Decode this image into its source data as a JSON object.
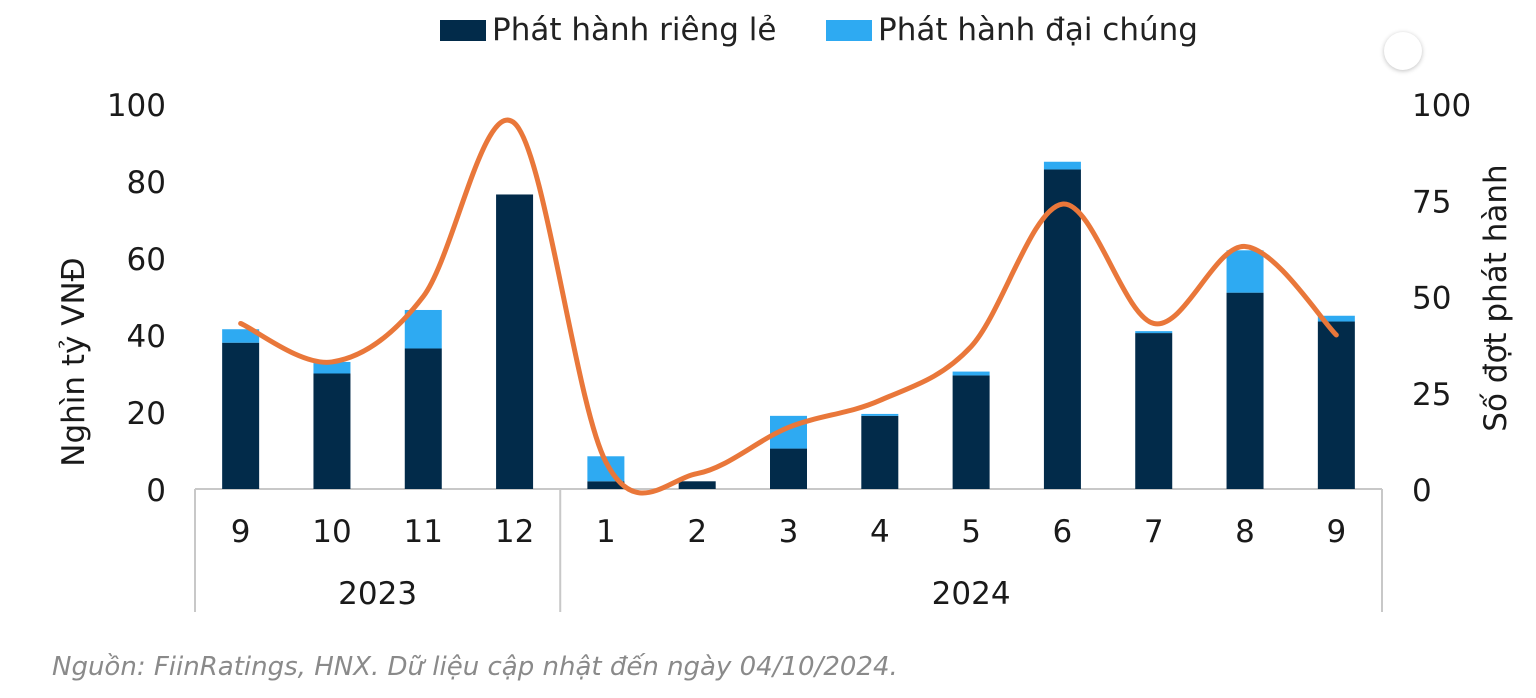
{
  "chart_data": {
    "type": "bar",
    "stacked": true,
    "categories": [
      "9",
      "10",
      "11",
      "12",
      "1",
      "2",
      "3",
      "4",
      "5",
      "6",
      "7",
      "8",
      "9"
    ],
    "groups": [
      {
        "label": "2023",
        "count": 4
      },
      {
        "label": "2024",
        "count": 9
      }
    ],
    "series": [
      {
        "name": "Phát hành riêng lẻ",
        "color": "#022b4a",
        "axis": "left",
        "values": [
          38,
          30,
          36.5,
          76.5,
          2,
          2,
          10.5,
          19,
          29.5,
          83,
          40.5,
          51,
          43.5
        ]
      },
      {
        "name": "Phát hành đại chúng",
        "color": "#2eaaf2",
        "axis": "left",
        "values": [
          3.5,
          3,
          10,
          0,
          6.5,
          0,
          8.5,
          0.5,
          1,
          2,
          0.5,
          11,
          1.5
        ]
      },
      {
        "name": "",
        "type": "line",
        "color": "#e9773a",
        "axis": "right",
        "smooth": true,
        "values": [
          43,
          33,
          50,
          95,
          7,
          4,
          16,
          23,
          37,
          74,
          43,
          63,
          40
        ]
      }
    ],
    "ylabel": "Nghìn tỷ VNĐ",
    "ylim": [
      0,
      100
    ],
    "yticks": [
      "0",
      "20",
      "40",
      "60",
      "80",
      "100"
    ],
    "y2label": "Số đợt phát hành",
    "y2lim": [
      0,
      100
    ],
    "y2ticks": [
      "0",
      "25",
      "50",
      "75",
      "100"
    ],
    "legend": "top-center",
    "grid": false
  },
  "source": "Nguồn: FiinRatings, HNX. Dữ liệu cập nhật đến ngày 04/10/2024."
}
